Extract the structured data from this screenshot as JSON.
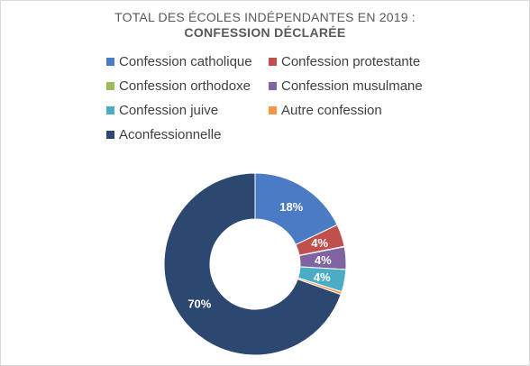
{
  "title": {
    "line1": "TOTAL DES ÉCOLES INDÉPENDANTES EN 2019 :",
    "line2": "CONFESSION DÉCLARÉE"
  },
  "chart_data": {
    "type": "pie",
    "subtype": "donut",
    "legend_position": "top",
    "categories": [
      "Confession catholique",
      "Confession protestante",
      "Confession orthodoxe",
      "Confession musulmane",
      "Confession juive",
      "Autre confession",
      "Aconfessionnelle"
    ],
    "values": [
      18,
      4,
      0.1,
      4,
      4,
      0.5,
      70
    ],
    "data_labels": [
      "18%",
      "4%",
      "",
      "4%",
      "4%",
      "",
      "70%"
    ],
    "colors": [
      "#4a7bc4",
      "#c0504d",
      "#9bbb59",
      "#8064a2",
      "#4bacc6",
      "#f79646",
      "#2c4770"
    ]
  }
}
